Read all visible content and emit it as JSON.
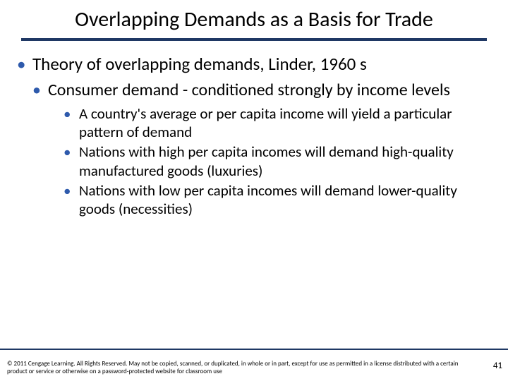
{
  "slide": {
    "title": "Overlapping Demands as a Basis for Trade",
    "title_fontsize": 30,
    "rule_color": "#1f3864",
    "bullet_color": "#2e5aac",
    "background_color": "#ffffff",
    "text_color": "#000000"
  },
  "bullets": {
    "lvl1_text": "Theory of overlapping demands, Linder, 1960 s",
    "lvl2_text": "Consumer demand - conditioned strongly by income levels",
    "lvl3": [
      "A country's average or per capita income will yield a particular pattern of demand",
      "Nations with high per capita incomes will demand high-quality manufactured goods (luxuries)",
      "Nations with low per capita incomes will demand lower-quality goods (necessities)"
    ],
    "lvl1_fontsize": 25,
    "lvl2_fontsize": 24,
    "lvl3_fontsize": 21
  },
  "footer": {
    "copyright": "© 2011 Cengage Learning. All Rights Reserved. May not be copied, scanned, or duplicated, in whole or in part, except for use as permitted in a license distributed with a certain product or service or otherwise on a password-protected website for classroom use",
    "copyright_fontsize": 9,
    "page_number": "41",
    "page_number_fontsize": 13
  }
}
